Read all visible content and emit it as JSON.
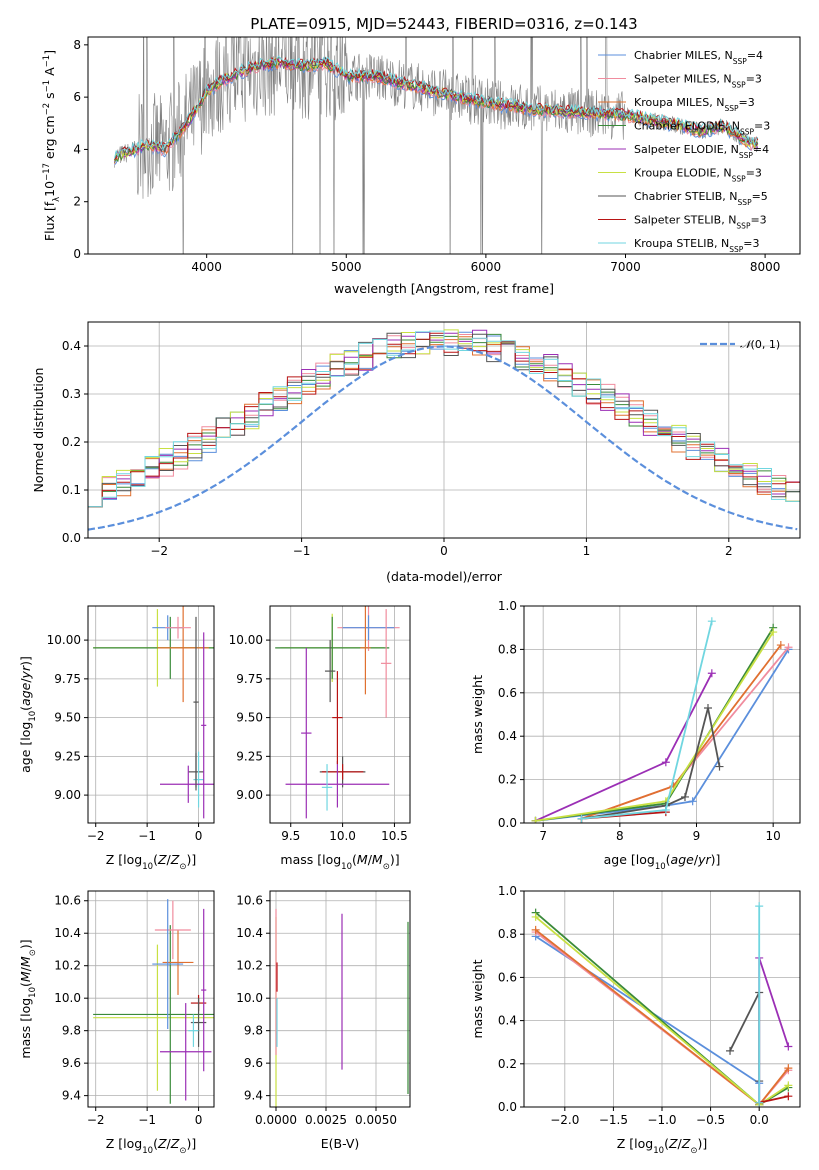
{
  "colors": {
    "chabrier_miles": "#5b8fdc",
    "salpeter_miles": "#f08c9e",
    "kroupa_miles": "#e07030",
    "chabrier_elodie": "#3a8a3a",
    "salpeter_elodie": "#9b2fb5",
    "kroupa_elodie": "#c8e043",
    "chabrier_stelib": "#555555",
    "salpeter_stelib": "#b81414",
    "kroupa_stelib": "#70d6e0",
    "observed": "#808080",
    "gaussian": "#5b8fdc"
  },
  "chart_data": [
    {
      "id": "spectrum",
      "type": "line",
      "title": "PLATE=0915, MJD=52443, FIBERID=0316, z=0.143",
      "xlabel": "wavelength [Angstrom, rest frame]",
      "ylabel": "Flux [f_λ10^-17 erg cm^-2 s^-1 A^-1]",
      "xlim": [
        3150,
        8250
      ],
      "ylim": [
        0,
        8.3
      ],
      "xticks": [
        4000,
        5000,
        6000,
        7000,
        8000
      ],
      "yticks": [
        0,
        2,
        4,
        6,
        8
      ],
      "legend_position": "upper-right",
      "legend": [
        {
          "label": "Chabrier MILES, N",
          "sub": "SSP",
          "suffix": "=4",
          "color": "chabrier_miles"
        },
        {
          "label": "Salpeter MILES, N",
          "sub": "SSP",
          "suffix": "=3",
          "color": "salpeter_miles"
        },
        {
          "label": "Kroupa MILES, N",
          "sub": "SSP",
          "suffix": "=3",
          "color": "kroupa_miles"
        },
        {
          "label": "Chabrier ELODIE, N",
          "sub": "SSP",
          "suffix": "=3",
          "color": "chabrier_elodie"
        },
        {
          "label": "Salpeter ELODIE, N",
          "sub": "SSP",
          "suffix": "=4",
          "color": "salpeter_elodie"
        },
        {
          "label": "Kroupa ELODIE, N",
          "sub": "SSP",
          "suffix": "=3",
          "color": "kroupa_elodie"
        },
        {
          "label": "Chabrier STELIB, N",
          "sub": "SSP",
          "suffix": "=5",
          "color": "chabrier_stelib"
        },
        {
          "label": "Salpeter STELIB, N",
          "sub": "SSP",
          "suffix": "=3",
          "color": "salpeter_stelib"
        },
        {
          "label": "Kroupa STELIB, N",
          "sub": "SSP",
          "suffix": "=3",
          "color": "kroupa_stelib"
        }
      ],
      "continuum": {
        "x": [
          3340,
          3500,
          3560,
          3700,
          3800,
          3900,
          4000,
          4100,
          4300,
          4500,
          4700,
          4850,
          5000,
          5200,
          5500,
          5800,
          6100,
          6400,
          6700,
          7000,
          7300,
          7550,
          7700,
          7900
        ],
        "y": [
          3.7,
          4.0,
          4.2,
          4.0,
          4.6,
          5.3,
          6.2,
          6.6,
          7.1,
          7.3,
          7.2,
          7.3,
          6.8,
          6.8,
          6.4,
          6.0,
          5.7,
          5.5,
          5.4,
          5.3,
          5.0,
          4.7,
          4.9,
          4.2
        ]
      }
    },
    {
      "id": "residuals",
      "type": "histogram",
      "xlabel": "(data-model)/error",
      "ylabel": "Normed distribution",
      "xlim": [
        -2.5,
        2.5
      ],
      "ylim": [
        0,
        0.45
      ],
      "xticks": [
        -2,
        -1,
        0,
        1,
        2
      ],
      "yticks": [
        0.0,
        0.1,
        0.2,
        0.3,
        0.4
      ],
      "bin_width": 0.1,
      "legend_position": "upper-right",
      "gaussian_label": "N(0, 1)",
      "legend_symbol": "𝒩",
      "legend_rest": "(0, 1)"
    },
    {
      "id": "age-vs-Z",
      "type": "errorbar",
      "xlabel": "Z [log10(Z/Z⊙)]",
      "ylabel": "age [log10(age/yr)]",
      "xlim": [
        -2.15,
        0.3
      ],
      "ylim": [
        8.82,
        10.22
      ],
      "xticks": [
        -2,
        -1,
        0
      ],
      "yticks": [
        9.0,
        9.25,
        9.5,
        9.75,
        10.0
      ],
      "bars": [
        {
          "x": -0.05,
          "y": 9.15,
          "xerr": 0.15,
          "yerr": 0.12,
          "color": "chabrier_stelib"
        },
        {
          "x": 0.0,
          "y": 9.1,
          "xerr": 0.1,
          "yerr": 0.18,
          "color": "kroupa_stelib"
        },
        {
          "x": -0.8,
          "y": 9.95,
          "xerr": 1.25,
          "yerr": 0.25,
          "color": "kroupa_elodie"
        },
        {
          "x": -0.55,
          "y": 9.95,
          "xerr": 1.5,
          "yerr": 0.2,
          "color": "chabrier_elodie"
        },
        {
          "x": -0.3,
          "y": 9.95,
          "xerr": 0.5,
          "yerr": 0.35,
          "color": "kroupa_miles"
        },
        {
          "x": -0.6,
          "y": 10.08,
          "xerr": 0.3,
          "yerr": 0.08,
          "color": "chabrier_miles"
        },
        {
          "x": -0.4,
          "y": 10.08,
          "xerr": 0.25,
          "yerr": 0.07,
          "color": "salpeter_miles"
        },
        {
          "x": -0.2,
          "y": 9.07,
          "xerr": 0.55,
          "yerr": 0.12,
          "color": "salpeter_elodie"
        },
        {
          "x": 0.1,
          "y": 9.45,
          "xerr": 0.05,
          "yerr": 0.6,
          "color": "salpeter_elodie"
        },
        {
          "x": -0.05,
          "y": 9.6,
          "xerr": 0.05,
          "yerr": 0.55,
          "color": "chabrier_stelib"
        }
      ]
    },
    {
      "id": "age-vs-mass",
      "type": "errorbar",
      "xlabel": "mass [log10(M/M⊙)]",
      "ylabel": "",
      "xlim": [
        9.3,
        10.65
      ],
      "ylim": [
        8.82,
        10.22
      ],
      "xticks": [
        9.5,
        10.0,
        10.5
      ],
      "yticks": [
        9.0,
        9.25,
        9.5,
        9.75,
        10.0
      ],
      "bars": [
        {
          "x": 10.0,
          "y": 9.15,
          "xerr": 0.22,
          "yerr": 0.1,
          "color": "chabrier_stelib"
        },
        {
          "x": 10.0,
          "y": 9.15,
          "xerr": 0.2,
          "yerr": 0.05,
          "color": "salpeter_stelib"
        },
        {
          "x": 9.95,
          "y": 9.07,
          "xerr": 0.5,
          "yerr": 0.15,
          "color": "salpeter_elodie"
        },
        {
          "x": 9.85,
          "y": 9.05,
          "xerr": 0.05,
          "yerr": 0.15,
          "color": "kroupa_stelib"
        },
        {
          "x": 9.9,
          "y": 9.95,
          "xerr": 0.5,
          "yerr": 0.22,
          "color": "kroupa_elodie"
        },
        {
          "x": 9.9,
          "y": 9.95,
          "xerr": 0.55,
          "yerr": 0.2,
          "color": "chabrier_elodie"
        },
        {
          "x": 10.25,
          "y": 10.08,
          "xerr": 0.3,
          "yerr": 0.15,
          "color": "salpeter_miles"
        },
        {
          "x": 10.25,
          "y": 10.08,
          "xerr": 0.25,
          "yerr": 0.08,
          "color": "chabrier_miles"
        },
        {
          "x": 10.22,
          "y": 9.95,
          "xerr": 0.05,
          "yerr": 0.3,
          "color": "kroupa_miles"
        },
        {
          "x": 9.65,
          "y": 9.4,
          "xerr": 0.05,
          "yerr": 0.55,
          "color": "salpeter_elodie"
        },
        {
          "x": 9.95,
          "y": 9.5,
          "xerr": 0.05,
          "yerr": 0.3,
          "color": "salpeter_stelib"
        },
        {
          "x": 9.88,
          "y": 9.8,
          "xerr": 0.05,
          "yerr": 0.2,
          "color": "chabrier_stelib"
        },
        {
          "x": 10.42,
          "y": 9.85,
          "xerr": 0.05,
          "yerr": 0.35,
          "color": "salpeter_miles"
        }
      ]
    },
    {
      "id": "massweight-vs-age",
      "type": "line",
      "xlabel": "age [log10(age/yr)]",
      "ylabel": "mass weight",
      "xlim": [
        6.75,
        10.35
      ],
      "ylim": [
        0,
        1.0
      ],
      "xticks": [
        7,
        8,
        9,
        10
      ],
      "yticks": [
        0.0,
        0.2,
        0.4,
        0.6,
        0.8,
        1.0
      ],
      "series": [
        {
          "color": "chabrier_miles",
          "x": [
            6.9,
            8.6,
            8.95,
            10.2
          ],
          "y": [
            0.01,
            0.08,
            0.1,
            0.8
          ]
        },
        {
          "color": "salpeter_miles",
          "x": [
            7.5,
            8.7,
            10.2
          ],
          "y": [
            0.02,
            0.17,
            0.81
          ]
        },
        {
          "color": "kroupa_miles",
          "x": [
            7.5,
            8.7,
            10.1
          ],
          "y": [
            0.02,
            0.17,
            0.82
          ]
        },
        {
          "color": "chabrier_elodie",
          "x": [
            6.9,
            8.6,
            10.0
          ],
          "y": [
            0.01,
            0.09,
            0.9
          ]
        },
        {
          "color": "salpeter_elodie",
          "x": [
            6.9,
            8.6,
            9.2
          ],
          "y": [
            0.01,
            0.28,
            0.69
          ]
        },
        {
          "color": "kroupa_elodie",
          "x": [
            6.9,
            8.6,
            10.0
          ],
          "y": [
            0.01,
            0.1,
            0.88
          ]
        },
        {
          "color": "chabrier_stelib",
          "x": [
            7.5,
            8.6,
            8.85,
            9.15,
            9.3
          ],
          "y": [
            0.02,
            0.08,
            0.12,
            0.53,
            0.26
          ]
        },
        {
          "color": "salpeter_stelib",
          "x": [
            7.5,
            8.6
          ],
          "y": [
            0.02,
            0.05
          ]
        },
        {
          "color": "kroupa_stelib",
          "x": [
            7.5,
            8.6,
            9.2
          ],
          "y": [
            0.02,
            0.06,
            0.93
          ]
        }
      ]
    },
    {
      "id": "mass-vs-Z",
      "type": "errorbar",
      "xlabel": "Z [log10(Z/Z⊙)]",
      "ylabel": "mass [log10(M/M⊙)]",
      "xlim": [
        -2.15,
        0.3
      ],
      "ylim": [
        9.33,
        10.66
      ],
      "xticks": [
        -2,
        -1,
        0
      ],
      "yticks": [
        9.4,
        9.6,
        9.8,
        10.0,
        10.2,
        10.4,
        10.6
      ],
      "bars": [
        {
          "x": -0.8,
          "y": 9.88,
          "xerr": 1.25,
          "yerr": 0.45,
          "color": "kroupa_elodie"
        },
        {
          "x": -0.55,
          "y": 9.9,
          "xerr": 1.5,
          "yerr": 0.55,
          "color": "chabrier_elodie"
        },
        {
          "x": -0.4,
          "y": 10.22,
          "xerr": 0.3,
          "yerr": 0.2,
          "color": "kroupa_miles"
        },
        {
          "x": -0.5,
          "y": 10.42,
          "xerr": 0.35,
          "yerr": 0.18,
          "color": "salpeter_miles"
        },
        {
          "x": -0.6,
          "y": 10.21,
          "xerr": 0.3,
          "yerr": 0.4,
          "color": "chabrier_miles"
        },
        {
          "x": -0.25,
          "y": 9.67,
          "xerr": 0.5,
          "yerr": 0.3,
          "color": "salpeter_elodie"
        },
        {
          "x": 0.0,
          "y": 9.97,
          "xerr": 0.15,
          "yerr": 0.05,
          "color": "salpeter_stelib"
        },
        {
          "x": 0.0,
          "y": 9.85,
          "xerr": 0.15,
          "yerr": 0.15,
          "color": "chabrier_stelib"
        },
        {
          "x": -0.1,
          "y": 9.8,
          "xerr": 0.1,
          "yerr": 0.1,
          "color": "kroupa_stelib"
        },
        {
          "x": 0.1,
          "y": 10.05,
          "xerr": 0.05,
          "yerr": 0.5,
          "color": "salpeter_elodie"
        }
      ]
    },
    {
      "id": "mass-vs-EBV",
      "type": "errorbar",
      "xlabel": "E(B-V)",
      "ylabel": "",
      "xlim": [
        -0.0003,
        0.0067
      ],
      "ylim": [
        9.33,
        10.66
      ],
      "xticks": [
        0.0,
        0.0025,
        0.005
      ],
      "xticklabels": [
        "0.0000",
        "0.0025",
        "0.0050"
      ],
      "yticks": [
        9.4,
        9.6,
        9.8,
        10.0,
        10.2,
        10.4,
        10.6
      ],
      "bars": [
        {
          "x": 0.0,
          "y": 9.9,
          "xerr": 0,
          "yerr": 0.6,
          "color": "kroupa_elodie"
        },
        {
          "x": 0.0,
          "y": 10.1,
          "xerr": 0,
          "yerr": 0.45,
          "color": "salpeter_miles"
        },
        {
          "x": 5e-05,
          "y": 10.13,
          "xerr": 0,
          "yerr": 0.09,
          "color": "salpeter_stelib"
        },
        {
          "x": 5e-05,
          "y": 9.85,
          "xerr": 0,
          "yerr": 0.15,
          "color": "kroupa_stelib"
        },
        {
          "x": 0.0033,
          "y": 10.04,
          "xerr": 0,
          "yerr": 0.48,
          "color": "salpeter_elodie"
        },
        {
          "x": 0.0066,
          "y": 9.94,
          "xerr": 0,
          "yerr": 0.53,
          "color": "chabrier_elodie"
        }
      ]
    },
    {
      "id": "massweight-vs-Z",
      "type": "line",
      "xlabel": "Z [log10(Z/Z⊙)]",
      "ylabel": "mass weight",
      "xlim": [
        -2.42,
        0.42
      ],
      "ylim": [
        0,
        1.0
      ],
      "xticks": [
        -2.0,
        -1.5,
        -1.0,
        -0.5,
        0.0
      ],
      "yticks": [
        0.0,
        0.2,
        0.4,
        0.6,
        0.8,
        1.0
      ],
      "series": [
        {
          "color": "chabrier_miles",
          "x": [
            -2.3,
            0.0,
            0.0
          ],
          "y": [
            0.79,
            0.11,
            0.01
          ]
        },
        {
          "color": "salpeter_miles",
          "x": [
            -2.3,
            0.0,
            0.3
          ],
          "y": [
            0.81,
            0.01,
            0.17
          ]
        },
        {
          "color": "kroupa_miles",
          "x": [
            -2.3,
            0.0,
            0.3
          ],
          "y": [
            0.82,
            0.01,
            0.18
          ]
        },
        {
          "color": "chabrier_elodie",
          "x": [
            -2.3,
            0.0,
            0.3
          ],
          "y": [
            0.9,
            0.01,
            0.09
          ]
        },
        {
          "color": "salpeter_elodie",
          "x": [
            0.0,
            0.0,
            0.3
          ],
          "y": [
            0.01,
            0.69,
            0.28
          ]
        },
        {
          "color": "kroupa_elodie",
          "x": [
            -2.3,
            0.0,
            0.3
          ],
          "y": [
            0.88,
            0.01,
            0.1
          ]
        },
        {
          "color": "chabrier_stelib",
          "x": [
            -0.3,
            0.0,
            0.0
          ],
          "y": [
            0.26,
            0.53,
            0.12
          ]
        },
        {
          "color": "salpeter_stelib",
          "x": [
            0.0,
            0.3
          ],
          "y": [
            0.02,
            0.05
          ]
        },
        {
          "color": "kroupa_stelib",
          "x": [
            0.0,
            0.0
          ],
          "y": [
            0.02,
            0.93
          ]
        }
      ]
    }
  ]
}
